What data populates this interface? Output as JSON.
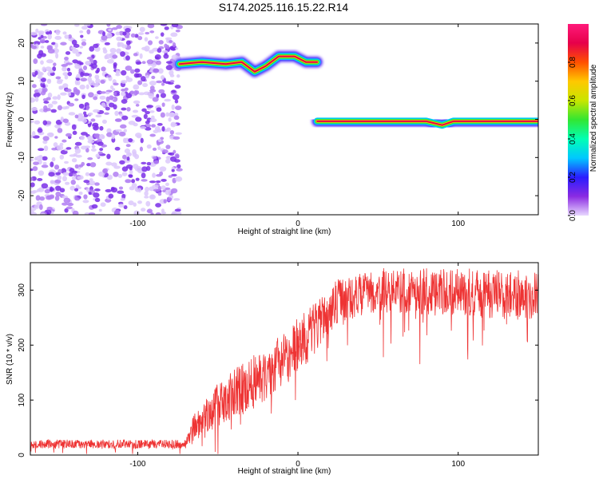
{
  "title": "S174.2025.116.15.22.R14",
  "colors": {
    "snr_line": "#ee3333",
    "speckle": "#7b2ff0",
    "colormap": [
      "#ffffff",
      "#e8d8ff",
      "#8a2be2",
      "#2a1cff",
      "#00c8ff",
      "#00ffb4",
      "#32e632",
      "#c8e600",
      "#ffc800",
      "#ff5000",
      "#e6004a",
      "#ff1a7a"
    ]
  },
  "chart_data": [
    {
      "type": "heatmap",
      "xlabel": "Height of straight line (km)",
      "ylabel": "Frequency (Hz)",
      "xlim": [
        -167,
        150
      ],
      "ylim": [
        -25,
        25
      ],
      "xticks": [
        -100,
        0,
        100
      ],
      "yticks": [
        -20,
        -10,
        0,
        10,
        20
      ],
      "grid": false,
      "ridge": [
        {
          "x": -74,
          "y": 14.5
        },
        {
          "x": -60,
          "y": 15.0
        },
        {
          "x": -45,
          "y": 14.5
        },
        {
          "x": -35,
          "y": 15.0
        },
        {
          "x": -27,
          "y": 12.5
        },
        {
          "x": -20,
          "y": 14.0
        },
        {
          "x": -12,
          "y": 16.5
        },
        {
          "x": -2,
          "y": 16.5
        },
        {
          "x": 5,
          "y": 15.0
        },
        {
          "x": 12,
          "y": 15.0
        },
        {
          "x": 12,
          "y": -0.5
        },
        {
          "x": 40,
          "y": -0.5
        },
        {
          "x": 80,
          "y": -0.5
        },
        {
          "x": 90,
          "y": -1.5
        },
        {
          "x": 97,
          "y": -0.5
        },
        {
          "x": 150,
          "y": -0.5
        }
      ],
      "noise_region_x": [
        -167,
        -74
      ],
      "colorbar": {
        "label": "Normalized spectral amplitude",
        "range": [
          0,
          1
        ],
        "ticks": [
          "0.0",
          "0.2",
          "0.4",
          "0.6",
          "0.8"
        ]
      }
    },
    {
      "type": "line",
      "xlabel": "Height of straight line (km)",
      "ylabel": "SNR (10 * v/v)",
      "xlim": [
        -167,
        150
      ],
      "ylim": [
        0,
        350
      ],
      "xticks": [
        -100,
        0,
        100
      ],
      "yticks": [
        0,
        100,
        200,
        300
      ],
      "grid": false,
      "series": [
        {
          "envelope": [
            {
              "x": -167,
              "mean": 20,
              "spread": 8
            },
            {
              "x": -70,
              "mean": 20,
              "spread": 8
            },
            {
              "x": -65,
              "mean": 50,
              "spread": 25
            },
            {
              "x": -50,
              "mean": 90,
              "spread": 40
            },
            {
              "x": -30,
              "mean": 130,
              "spread": 50
            },
            {
              "x": -10,
              "mean": 170,
              "spread": 50
            },
            {
              "x": 10,
              "mean": 230,
              "spread": 50
            },
            {
              "x": 25,
              "mean": 280,
              "spread": 40
            },
            {
              "x": 50,
              "mean": 300,
              "spread": 40
            },
            {
              "x": 100,
              "mean": 295,
              "spread": 45
            },
            {
              "x": 150,
              "mean": 290,
              "spread": 45
            }
          ]
        }
      ]
    }
  ]
}
